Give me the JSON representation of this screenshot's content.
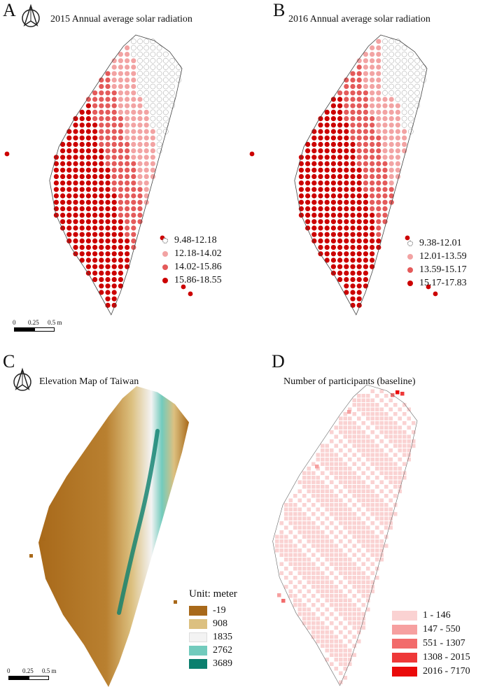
{
  "panels": {
    "a": {
      "letter": "A",
      "title": "2015 Annual average solar radiation",
      "legend": [
        {
          "label": "9.48-12.18",
          "color": "#ffffff"
        },
        {
          "label": "12.18-14.02",
          "color": "#f2a3a3"
        },
        {
          "label": "14.02-15.86",
          "color": "#e45a5a"
        },
        {
          "label": "15.86-18.55",
          "color": "#cc0000"
        }
      ],
      "scale": {
        "t0": "0",
        "t1": "0.25",
        "t2": "0.5 m"
      }
    },
    "b": {
      "letter": "B",
      "title": "2016 Annual average solar radiation",
      "legend": [
        {
          "label": "9.38-12.01",
          "color": "#ffffff"
        },
        {
          "label": "12.01-13.59",
          "color": "#f2a3a3"
        },
        {
          "label": "13.59-15.17",
          "color": "#e45a5a"
        },
        {
          "label": "15.17-17.83",
          "color": "#cc0000"
        }
      ]
    },
    "c": {
      "letter": "C",
      "title": "Elevation Map of Taiwan",
      "legend_caption": "Unit: meter",
      "legend": [
        {
          "label": "-19",
          "color": "#a8691a"
        },
        {
          "label": "908",
          "color": "#dcc080"
        },
        {
          "label": "1835",
          "color": "#f3f3f3"
        },
        {
          "label": "2762",
          "color": "#72cbbd"
        },
        {
          "label": "3689",
          "color": "#0b7f6e"
        }
      ],
      "scale": {
        "t0": "0",
        "t1": "0.25",
        "t2": "0.5 m"
      }
    },
    "d": {
      "letter": "D",
      "title": "Number of participants (baseline)",
      "legend": [
        {
          "label": "1 - 146",
          "color": "#fad2d2"
        },
        {
          "label": "147 - 550",
          "color": "#f6a0a0"
        },
        {
          "label": "551 - 1307",
          "color": "#f26b6b"
        },
        {
          "label": "1308 - 2015",
          "color": "#ee3838"
        },
        {
          "label": "2016 - 7170",
          "color": "#ea0a0a"
        }
      ]
    }
  },
  "icons": [
    "north-arrow-icon"
  ]
}
